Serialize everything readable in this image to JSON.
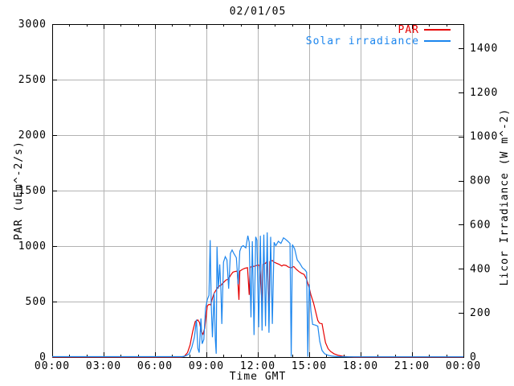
{
  "chart_data": {
    "type": "line",
    "title": "02/01/05",
    "xlabel": "Time GMT",
    "ylabel": "PAR (uEm^-2/s)",
    "y2label": "Licor Irradiance (W m^-2)",
    "grid": true,
    "legend_position": "top-right-inside",
    "x_unit": "hours GMT",
    "xlim": [
      0,
      24
    ],
    "x_major_ticks": [
      0,
      3,
      6,
      9,
      12,
      15,
      18,
      21,
      24
    ],
    "x_tick_labels": [
      "00:00",
      "03:00",
      "06:00",
      "09:00",
      "12:00",
      "15:00",
      "18:00",
      "21:00",
      "00:00"
    ],
    "x_minor_tick_hours": [
      1,
      2,
      4,
      5,
      7,
      8,
      10,
      11,
      13,
      14,
      16,
      17,
      19,
      20,
      22,
      23
    ],
    "ylim": [
      0,
      3000
    ],
    "y1_major_ticks": [
      0,
      500,
      1000,
      1500,
      2000,
      2500,
      3000
    ],
    "y1_tick_labels": [
      "0",
      "500",
      "1000",
      "1500",
      "2000",
      "2500",
      "3000"
    ],
    "y2lim": [
      0,
      1509
    ],
    "y2_major_ticks": [
      0,
      200,
      400,
      600,
      800,
      1000,
      1200,
      1400
    ],
    "y2_tick_labels": [
      "0",
      "200",
      "400",
      "600",
      "800",
      "1000",
      "1200",
      "1400"
    ],
    "colors": {
      "par_line": "#e60000",
      "solar_line": "#1c86ee",
      "grid_line": "#b3b3b3",
      "border": "#000000",
      "background": "#ffffff",
      "text": "#000000"
    },
    "series": [
      {
        "name": "PAR",
        "axis": "y1",
        "color": "#e60000",
        "points": [
          [
            0,
            0
          ],
          [
            1,
            0
          ],
          [
            2,
            0
          ],
          [
            3,
            0
          ],
          [
            4,
            0
          ],
          [
            5,
            0
          ],
          [
            6,
            0
          ],
          [
            7,
            0
          ],
          [
            7.5,
            0
          ],
          [
            7.7,
            5
          ],
          [
            7.9,
            40
          ],
          [
            8.05,
            110
          ],
          [
            8.2,
            230
          ],
          [
            8.35,
            320
          ],
          [
            8.5,
            335
          ],
          [
            8.6,
            310
          ],
          [
            8.7,
            230
          ],
          [
            8.8,
            205
          ],
          [
            8.9,
            260
          ],
          [
            9.0,
            390
          ],
          [
            9.05,
            460
          ],
          [
            9.15,
            475
          ],
          [
            9.25,
            470
          ],
          [
            9.35,
            530
          ],
          [
            9.45,
            575
          ],
          [
            9.55,
            600
          ],
          [
            9.65,
            625
          ],
          [
            9.75,
            640
          ],
          [
            9.85,
            645
          ],
          [
            9.95,
            665
          ],
          [
            10.05,
            680
          ],
          [
            10.15,
            695
          ],
          [
            10.25,
            700
          ],
          [
            10.35,
            720
          ],
          [
            10.45,
            745
          ],
          [
            10.55,
            765
          ],
          [
            10.65,
            770
          ],
          [
            10.8,
            775
          ],
          [
            10.9,
            515
          ],
          [
            10.95,
            775
          ],
          [
            11.1,
            790
          ],
          [
            11.25,
            800
          ],
          [
            11.4,
            805
          ],
          [
            11.5,
            560
          ],
          [
            11.55,
            810
          ],
          [
            11.7,
            815
          ],
          [
            11.85,
            820
          ],
          [
            12.0,
            830
          ],
          [
            12.1,
            825
          ],
          [
            12.25,
            480
          ],
          [
            12.3,
            835
          ],
          [
            12.45,
            845
          ],
          [
            12.55,
            865
          ],
          [
            12.65,
            390
          ],
          [
            12.7,
            860
          ],
          [
            12.85,
            870
          ],
          [
            12.95,
            855
          ],
          [
            13.1,
            845
          ],
          [
            13.25,
            835
          ],
          [
            13.4,
            820
          ],
          [
            13.5,
            830
          ],
          [
            13.65,
            825
          ],
          [
            13.8,
            810
          ],
          [
            13.95,
            805
          ],
          [
            14.1,
            815
          ],
          [
            14.25,
            790
          ],
          [
            14.4,
            770
          ],
          [
            14.55,
            755
          ],
          [
            14.7,
            745
          ],
          [
            14.85,
            700
          ],
          [
            15.0,
            625
          ],
          [
            15.1,
            560
          ],
          [
            15.25,
            490
          ],
          [
            15.4,
            395
          ],
          [
            15.5,
            330
          ],
          [
            15.6,
            305
          ],
          [
            15.75,
            300
          ],
          [
            15.85,
            215
          ],
          [
            15.95,
            130
          ],
          [
            16.1,
            75
          ],
          [
            16.25,
            50
          ],
          [
            16.45,
            30
          ],
          [
            16.7,
            15
          ],
          [
            17.0,
            6
          ],
          [
            17.3,
            2
          ],
          [
            17.6,
            0
          ],
          [
            18,
            0
          ],
          [
            19,
            0
          ],
          [
            20,
            0
          ],
          [
            21,
            0
          ],
          [
            22,
            0
          ],
          [
            23,
            0
          ],
          [
            24,
            0
          ]
        ]
      },
      {
        "name": "Solar irradiance",
        "axis": "y2",
        "color": "#1c86ee",
        "points": [
          [
            0,
            2
          ],
          [
            1,
            2
          ],
          [
            2,
            2
          ],
          [
            3,
            2
          ],
          [
            4,
            2
          ],
          [
            5,
            2
          ],
          [
            6,
            2
          ],
          [
            7,
            2
          ],
          [
            7.6,
            2
          ],
          [
            7.8,
            6
          ],
          [
            8.0,
            15
          ],
          [
            8.15,
            45
          ],
          [
            8.3,
            90
          ],
          [
            8.42,
            170
          ],
          [
            8.5,
            40
          ],
          [
            8.58,
            20
          ],
          [
            8.68,
            175
          ],
          [
            8.75,
            60
          ],
          [
            8.85,
            80
          ],
          [
            8.95,
            220
          ],
          [
            9.05,
            260
          ],
          [
            9.15,
            280
          ],
          [
            9.22,
            530
          ],
          [
            9.28,
            240
          ],
          [
            9.35,
            90
          ],
          [
            9.45,
            290
          ],
          [
            9.52,
            80
          ],
          [
            9.57,
            15
          ],
          [
            9.62,
            500
          ],
          [
            9.7,
            310
          ],
          [
            9.78,
            420
          ],
          [
            9.85,
            300
          ],
          [
            9.9,
            150
          ],
          [
            10.0,
            430
          ],
          [
            10.1,
            455
          ],
          [
            10.2,
            440
          ],
          [
            10.3,
            310
          ],
          [
            10.4,
            470
          ],
          [
            10.5,
            485
          ],
          [
            10.6,
            470
          ],
          [
            10.75,
            450
          ],
          [
            10.85,
            330
          ],
          [
            10.95,
            480
          ],
          [
            11.05,
            500
          ],
          [
            11.15,
            505
          ],
          [
            11.3,
            495
          ],
          [
            11.42,
            550
          ],
          [
            11.5,
            520
          ],
          [
            11.6,
            180
          ],
          [
            11.68,
            525
          ],
          [
            11.78,
            100
          ],
          [
            11.88,
            545
          ],
          [
            11.95,
            530
          ],
          [
            12.05,
            135
          ],
          [
            12.15,
            550
          ],
          [
            12.25,
            120
          ],
          [
            12.35,
            555
          ],
          [
            12.45,
            140
          ],
          [
            12.55,
            565
          ],
          [
            12.65,
            110
          ],
          [
            12.75,
            545
          ],
          [
            12.85,
            150
          ],
          [
            12.95,
            520
          ],
          [
            13.05,
            505
          ],
          [
            13.2,
            525
          ],
          [
            13.35,
            515
          ],
          [
            13.5,
            540
          ],
          [
            13.6,
            535
          ],
          [
            13.75,
            525
          ],
          [
            13.88,
            515
          ],
          [
            13.95,
            2
          ],
          [
            14.02,
            510
          ],
          [
            14.15,
            490
          ],
          [
            14.3,
            440
          ],
          [
            14.45,
            425
          ],
          [
            14.6,
            405
          ],
          [
            14.75,
            395
          ],
          [
            14.85,
            385
          ],
          [
            14.92,
            2
          ],
          [
            15.0,
            330
          ],
          [
            15.1,
            210
          ],
          [
            15.2,
            148
          ],
          [
            15.35,
            145
          ],
          [
            15.5,
            140
          ],
          [
            15.62,
            70
          ],
          [
            15.75,
            30
          ],
          [
            15.9,
            15
          ],
          [
            16.1,
            8
          ],
          [
            16.35,
            4
          ],
          [
            16.7,
            2
          ],
          [
            17.2,
            1
          ],
          [
            18,
            1
          ],
          [
            19,
            1
          ],
          [
            20,
            1
          ],
          [
            21,
            1
          ],
          [
            22,
            1
          ],
          [
            23,
            1
          ],
          [
            24,
            1
          ]
        ]
      }
    ]
  }
}
